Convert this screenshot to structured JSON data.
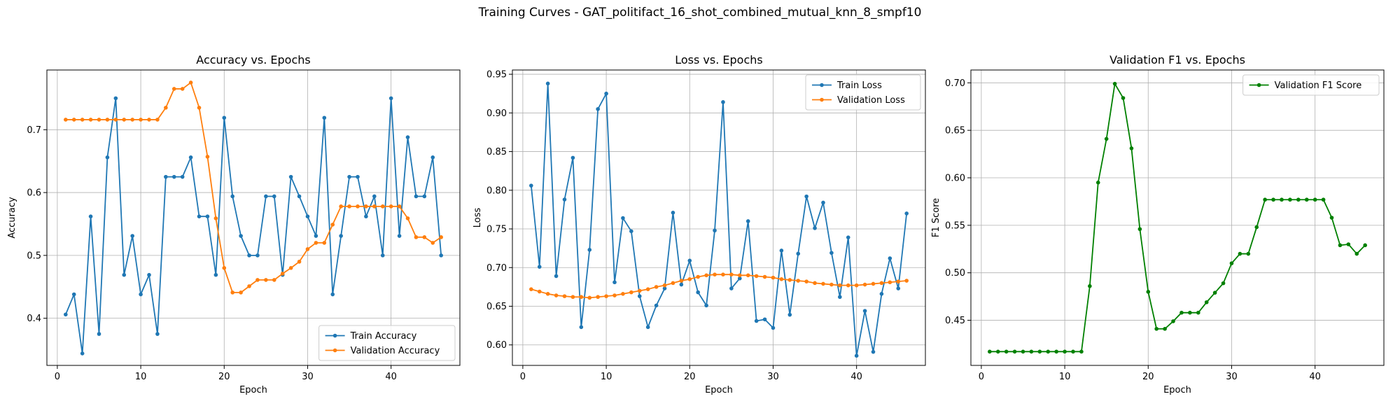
{
  "figure": {
    "suptitle": "Training Curves - GAT_politifact_16_shot_combined_mutual_knn_8_smpf10"
  },
  "colors": {
    "train": "#1f77b4",
    "validation": "#ff7f0e",
    "f1": "#008000",
    "grid": "#b0b0b0"
  },
  "chart_data": [
    {
      "type": "line",
      "title": "Accuracy vs. Epochs",
      "xlabel": "Epoch",
      "ylabel": "Accuracy",
      "xlim": [
        -1.25,
        48.25
      ],
      "ylim": [
        0.325,
        0.795
      ],
      "xticks": [
        0,
        10,
        20,
        30,
        40
      ],
      "yticks": [
        0.4,
        0.5,
        0.6,
        0.7
      ],
      "grid": true,
      "legend_loc": "lower right",
      "x": [
        1,
        2,
        3,
        4,
        5,
        6,
        7,
        8,
        9,
        10,
        11,
        12,
        13,
        14,
        15,
        16,
        17,
        18,
        19,
        20,
        21,
        22,
        23,
        24,
        25,
        26,
        27,
        28,
        29,
        30,
        31,
        32,
        33,
        34,
        35,
        36,
        37,
        38,
        39,
        40,
        41,
        42,
        43,
        44,
        45,
        46
      ],
      "series": [
        {
          "name": "Train Accuracy",
          "color": "#1f77b4",
          "values": [
            0.406,
            0.438,
            0.344,
            0.562,
            0.375,
            0.656,
            0.75,
            0.469,
            0.531,
            0.438,
            0.469,
            0.375,
            0.625,
            0.625,
            0.625,
            0.656,
            0.562,
            0.562,
            0.469,
            0.719,
            0.594,
            0.531,
            0.5,
            0.5,
            0.594,
            0.594,
            0.469,
            0.625,
            0.594,
            0.562,
            0.531,
            0.719,
            0.438,
            0.531,
            0.625,
            0.625,
            0.562,
            0.594,
            0.5,
            0.75,
            0.531,
            0.688,
            0.594,
            0.594,
            0.656,
            0.5
          ]
        },
        {
          "name": "Validation Accuracy",
          "color": "#ff7f0e",
          "values": [
            0.716,
            0.716,
            0.716,
            0.716,
            0.716,
            0.716,
            0.716,
            0.716,
            0.716,
            0.716,
            0.716,
            0.716,
            0.735,
            0.765,
            0.765,
            0.775,
            0.735,
            0.657,
            0.559,
            0.48,
            0.441,
            0.441,
            0.451,
            0.461,
            0.461,
            0.461,
            0.471,
            0.48,
            0.49,
            0.51,
            0.52,
            0.52,
            0.549,
            0.578,
            0.578,
            0.578,
            0.578,
            0.578,
            0.578,
            0.578,
            0.578,
            0.559,
            0.529,
            0.529,
            0.52,
            0.529
          ]
        }
      ]
    },
    {
      "type": "line",
      "title": "Loss vs. Epochs",
      "xlabel": "Epoch",
      "ylabel": "Loss",
      "xlim": [
        -1.25,
        48.25
      ],
      "ylim": [
        0.5735,
        0.9555
      ],
      "xticks": [
        0,
        10,
        20,
        30,
        40
      ],
      "yticks": [
        0.6,
        0.65,
        0.7,
        0.75,
        0.8,
        0.85,
        0.9,
        0.95
      ],
      "grid": true,
      "legend_loc": "upper right",
      "x": [
        1,
        2,
        3,
        4,
        5,
        6,
        7,
        8,
        9,
        10,
        11,
        12,
        13,
        14,
        15,
        16,
        17,
        18,
        19,
        20,
        21,
        22,
        23,
        24,
        25,
        26,
        27,
        28,
        29,
        30,
        31,
        32,
        33,
        34,
        35,
        36,
        37,
        38,
        39,
        40,
        41,
        42,
        43,
        44,
        45,
        46
      ],
      "series": [
        {
          "name": "Train Loss",
          "color": "#1f77b4",
          "values": [
            0.806,
            0.701,
            0.938,
            0.689,
            0.788,
            0.842,
            0.623,
            0.723,
            0.905,
            0.925,
            0.681,
            0.764,
            0.747,
            0.663,
            0.623,
            0.651,
            0.673,
            0.771,
            0.678,
            0.709,
            0.668,
            0.651,
            0.748,
            0.914,
            0.673,
            0.686,
            0.76,
            0.631,
            0.633,
            0.622,
            0.722,
            0.639,
            0.718,
            0.792,
            0.751,
            0.784,
            0.719,
            0.662,
            0.739,
            0.586,
            0.644,
            0.591,
            0.666,
            0.712,
            0.673,
            0.77
          ]
        },
        {
          "name": "Validation Loss",
          "color": "#ff7f0e",
          "values": [
            0.672,
            0.669,
            0.666,
            0.664,
            0.663,
            0.662,
            0.662,
            0.661,
            0.662,
            0.663,
            0.664,
            0.666,
            0.668,
            0.67,
            0.672,
            0.675,
            0.677,
            0.68,
            0.683,
            0.685,
            0.688,
            0.69,
            0.691,
            0.691,
            0.691,
            0.69,
            0.69,
            0.689,
            0.688,
            0.687,
            0.685,
            0.684,
            0.683,
            0.682,
            0.68,
            0.679,
            0.678,
            0.677,
            0.677,
            0.677,
            0.678,
            0.679,
            0.68,
            0.681,
            0.682,
            0.683
          ]
        }
      ]
    },
    {
      "type": "line",
      "title": "Validation F1 vs. Epochs",
      "xlabel": "Epoch",
      "ylabel": "F1 Score",
      "xlim": [
        -1.25,
        48.25
      ],
      "ylim": [
        0.4025,
        0.7135
      ],
      "xticks": [
        0,
        10,
        20,
        30,
        40
      ],
      "yticks": [
        0.45,
        0.5,
        0.55,
        0.6,
        0.65,
        0.7
      ],
      "grid": true,
      "legend_loc": "upper right",
      "x": [
        1,
        2,
        3,
        4,
        5,
        6,
        7,
        8,
        9,
        10,
        11,
        12,
        13,
        14,
        15,
        16,
        17,
        18,
        19,
        20,
        21,
        22,
        23,
        24,
        25,
        26,
        27,
        28,
        29,
        30,
        31,
        32,
        33,
        34,
        35,
        36,
        37,
        38,
        39,
        40,
        41,
        42,
        43,
        44,
        45,
        46
      ],
      "series": [
        {
          "name": "Validation F1 Score",
          "color": "#008000",
          "values": [
            0.417,
            0.417,
            0.417,
            0.417,
            0.417,
            0.417,
            0.417,
            0.417,
            0.417,
            0.417,
            0.417,
            0.417,
            0.486,
            0.595,
            0.641,
            0.699,
            0.684,
            0.631,
            0.546,
            0.48,
            0.441,
            0.441,
            0.449,
            0.458,
            0.458,
            0.458,
            0.469,
            0.479,
            0.489,
            0.51,
            0.52,
            0.52,
            0.548,
            0.577,
            0.577,
            0.577,
            0.577,
            0.577,
            0.577,
            0.577,
            0.577,
            0.558,
            0.529,
            0.53,
            0.52,
            0.529
          ]
        }
      ]
    }
  ]
}
